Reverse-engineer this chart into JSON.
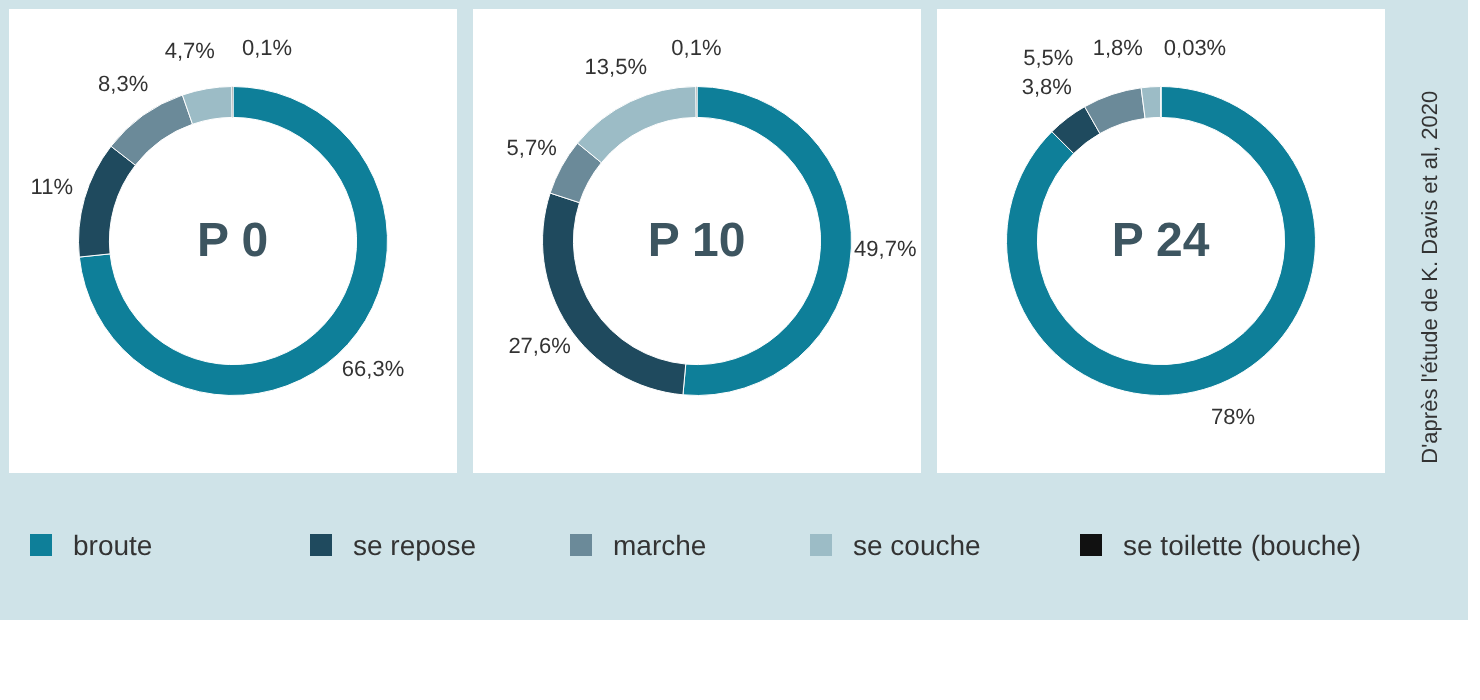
{
  "chart_data": [
    {
      "type": "donut",
      "title": "P 0",
      "categories": [
        "broute",
        "se repose",
        "marche",
        "se couche",
        "se toilette (bouche)"
      ],
      "values": [
        66.3,
        11,
        8.3,
        4.7,
        0.1
      ],
      "value_labels": [
        "66,3%",
        "11%",
        "8,3%",
        "4,7%",
        "0,1%"
      ],
      "colors": [
        "#0e7f99",
        "#1f4a5e",
        "#6b8a99",
        "#9cbcc6",
        "#111111"
      ],
      "legend": "bottom"
    },
    {
      "type": "donut",
      "title": "P 10",
      "values": [
        49.7,
        27.6,
        5.7,
        13.5,
        0.1
      ],
      "value_labels": [
        "49,7%",
        "27,6%",
        "5,7%",
        "13,5%",
        "0,1%"
      ],
      "colors": [
        "#0e7f99",
        "#1f4a5e",
        "#6b8a99",
        "#9cbcc6",
        "#111111"
      ]
    },
    {
      "type": "donut",
      "title": "P 24",
      "values": [
        78,
        3.8,
        5.5,
        1.8,
        0.03
      ],
      "value_labels": [
        "78%",
        "3,8%",
        "5,5%",
        "1,8%",
        "0,03%"
      ],
      "colors": [
        "#0e7f99",
        "#1f4a5e",
        "#6b8a99",
        "#9cbcc6",
        "#111111"
      ],
      "annotations": [
        "D'après l'étude de K. Davis et al, 2020"
      ]
    }
  ]
}
